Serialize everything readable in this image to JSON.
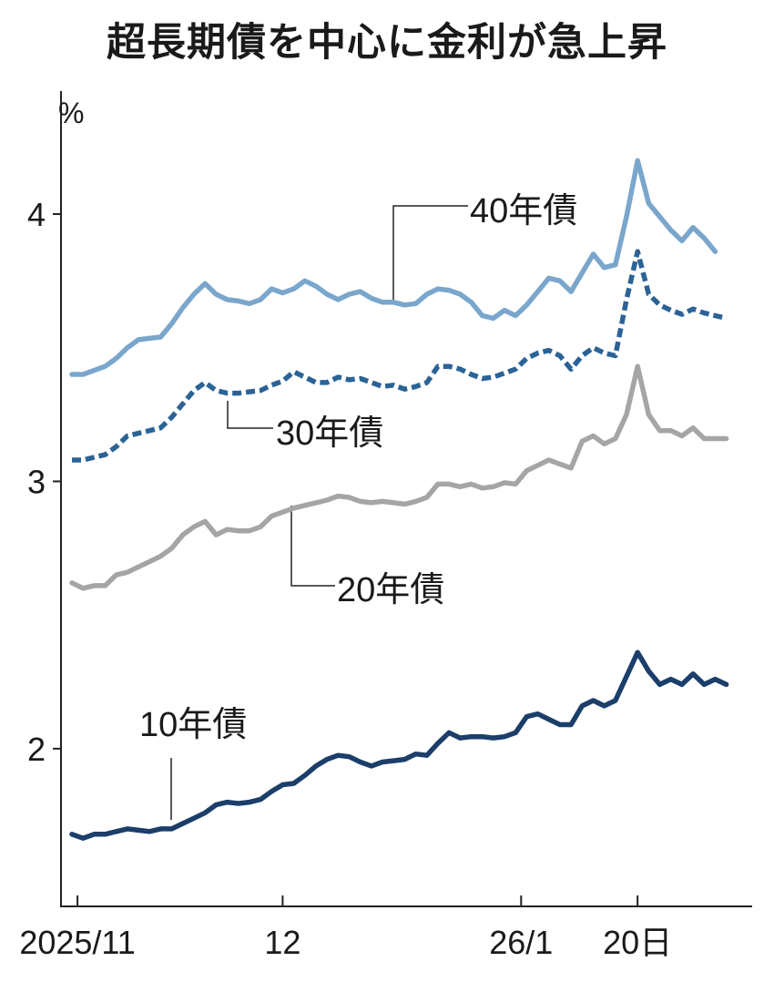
{
  "chart_data": {
    "type": "line",
    "title": "超長期債を中心に金利が急上昇",
    "ylabel": "%",
    "ylim": [
      1.41,
      4.46
    ],
    "yticks": [
      2,
      3,
      4
    ],
    "grid": false,
    "legend": "inline-labels",
    "xticks": [
      {
        "label": "2025/11",
        "date": "2025-11-01"
      },
      {
        "label": "12",
        "date": "2025-12-01"
      },
      {
        "label": "26/1",
        "date": "2026-01-01"
      },
      {
        "label": "20日",
        "date": "2026-01-20"
      }
    ],
    "x": [
      "2025-10-31",
      "2025-11-04",
      "2025-11-05",
      "2025-11-06",
      "2025-11-07",
      "2025-11-10",
      "2025-11-11",
      "2025-11-12",
      "2025-11-13",
      "2025-11-14",
      "2025-11-17",
      "2025-11-18",
      "2025-11-19",
      "2025-11-20",
      "2025-11-21",
      "2025-11-25",
      "2025-11-26",
      "2025-11-27",
      "2025-11-28",
      "2025-12-01",
      "2025-12-02",
      "2025-12-03",
      "2025-12-04",
      "2025-12-05",
      "2025-12-08",
      "2025-12-09",
      "2025-12-10",
      "2025-12-11",
      "2025-12-12",
      "2025-12-15",
      "2025-12-16",
      "2025-12-17",
      "2025-12-18",
      "2025-12-19",
      "2025-12-22",
      "2025-12-23",
      "2025-12-24",
      "2025-12-25",
      "2025-12-26",
      "2025-12-29",
      "2025-12-30",
      "2026-01-05",
      "2026-01-06",
      "2026-01-07",
      "2026-01-08",
      "2026-01-09",
      "2026-01-13",
      "2026-01-14",
      "2026-01-15",
      "2026-01-16",
      "2026-01-19",
      "2026-01-20",
      "2026-01-21",
      "2026-01-22",
      "2026-01-23",
      "2026-01-26",
      "2026-01-27",
      "2026-01-28",
      "2026-01-29",
      "2026-01-30"
    ],
    "series": [
      {
        "name": "40年債",
        "color": "#7aa6cc",
        "dashed": false,
        "values": [
          3.4,
          3.4,
          3.415,
          3.43,
          3.46,
          3.5,
          3.53,
          3.535,
          3.54,
          3.59,
          3.65,
          3.7,
          3.74,
          3.7,
          3.68,
          3.675,
          3.665,
          3.68,
          3.72,
          3.705,
          3.72,
          3.75,
          3.73,
          3.7,
          3.68,
          3.7,
          3.71,
          3.685,
          3.67,
          3.67,
          3.66,
          3.665,
          3.7,
          3.72,
          3.715,
          3.7,
          3.67,
          3.62,
          3.61,
          3.64,
          3.62,
          3.66,
          3.71,
          3.76,
          3.75,
          3.71,
          3.78,
          3.85,
          3.8,
          3.81,
          3.99,
          4.2,
          4.04,
          3.99,
          3.94,
          3.9,
          3.95,
          3.91,
          3.86,
          null
        ]
      },
      {
        "name": "30年債",
        "color": "#2b6396",
        "dashed": true,
        "values": [
          3.08,
          3.08,
          3.09,
          3.1,
          3.13,
          3.17,
          3.18,
          3.19,
          3.2,
          3.24,
          3.29,
          3.34,
          3.37,
          3.34,
          3.33,
          3.33,
          3.335,
          3.34,
          3.36,
          3.375,
          3.41,
          3.39,
          3.37,
          3.37,
          3.39,
          3.38,
          3.385,
          3.37,
          3.355,
          3.36,
          3.345,
          3.355,
          3.37,
          3.43,
          3.43,
          3.42,
          3.4,
          3.385,
          3.39,
          3.405,
          3.42,
          3.46,
          3.48,
          3.49,
          3.47,
          3.42,
          3.47,
          3.5,
          3.48,
          3.47,
          3.68,
          3.86,
          3.7,
          3.66,
          3.64,
          3.625,
          3.645,
          3.63,
          3.62,
          3.61
        ]
      },
      {
        "name": "20年債",
        "color": "#a5a5a5",
        "dashed": false,
        "values": [
          2.62,
          2.6,
          2.61,
          2.61,
          2.65,
          2.66,
          2.68,
          2.7,
          2.72,
          2.75,
          2.8,
          2.83,
          2.85,
          2.8,
          2.82,
          2.815,
          2.815,
          2.83,
          2.87,
          2.885,
          2.9,
          2.91,
          2.92,
          2.93,
          2.945,
          2.94,
          2.925,
          2.92,
          2.925,
          2.92,
          2.915,
          2.925,
          2.94,
          2.99,
          2.99,
          2.98,
          2.99,
          2.975,
          2.98,
          2.995,
          2.99,
          3.04,
          3.06,
          3.08,
          3.065,
          3.05,
          3.15,
          3.17,
          3.14,
          3.16,
          3.25,
          3.43,
          3.25,
          3.19,
          3.19,
          3.17,
          3.2,
          3.16,
          3.16,
          3.16
        ]
      },
      {
        "name": "10年債",
        "color": "#1b3e6a",
        "dashed": false,
        "values": [
          1.68,
          1.665,
          1.68,
          1.68,
          1.69,
          1.7,
          1.695,
          1.69,
          1.7,
          1.7,
          1.72,
          1.74,
          1.76,
          1.79,
          1.8,
          1.795,
          1.8,
          1.81,
          1.84,
          1.865,
          1.87,
          1.9,
          1.935,
          1.96,
          1.975,
          1.97,
          1.95,
          1.935,
          1.95,
          1.955,
          1.96,
          1.98,
          1.975,
          2.02,
          2.06,
          2.04,
          2.045,
          2.045,
          2.04,
          2.045,
          2.06,
          2.12,
          2.13,
          2.11,
          2.09,
          2.09,
          2.16,
          2.18,
          2.16,
          2.18,
          2.27,
          2.36,
          2.29,
          2.24,
          2.26,
          2.24,
          2.28,
          2.24,
          2.26,
          2.24
        ]
      }
    ]
  }
}
